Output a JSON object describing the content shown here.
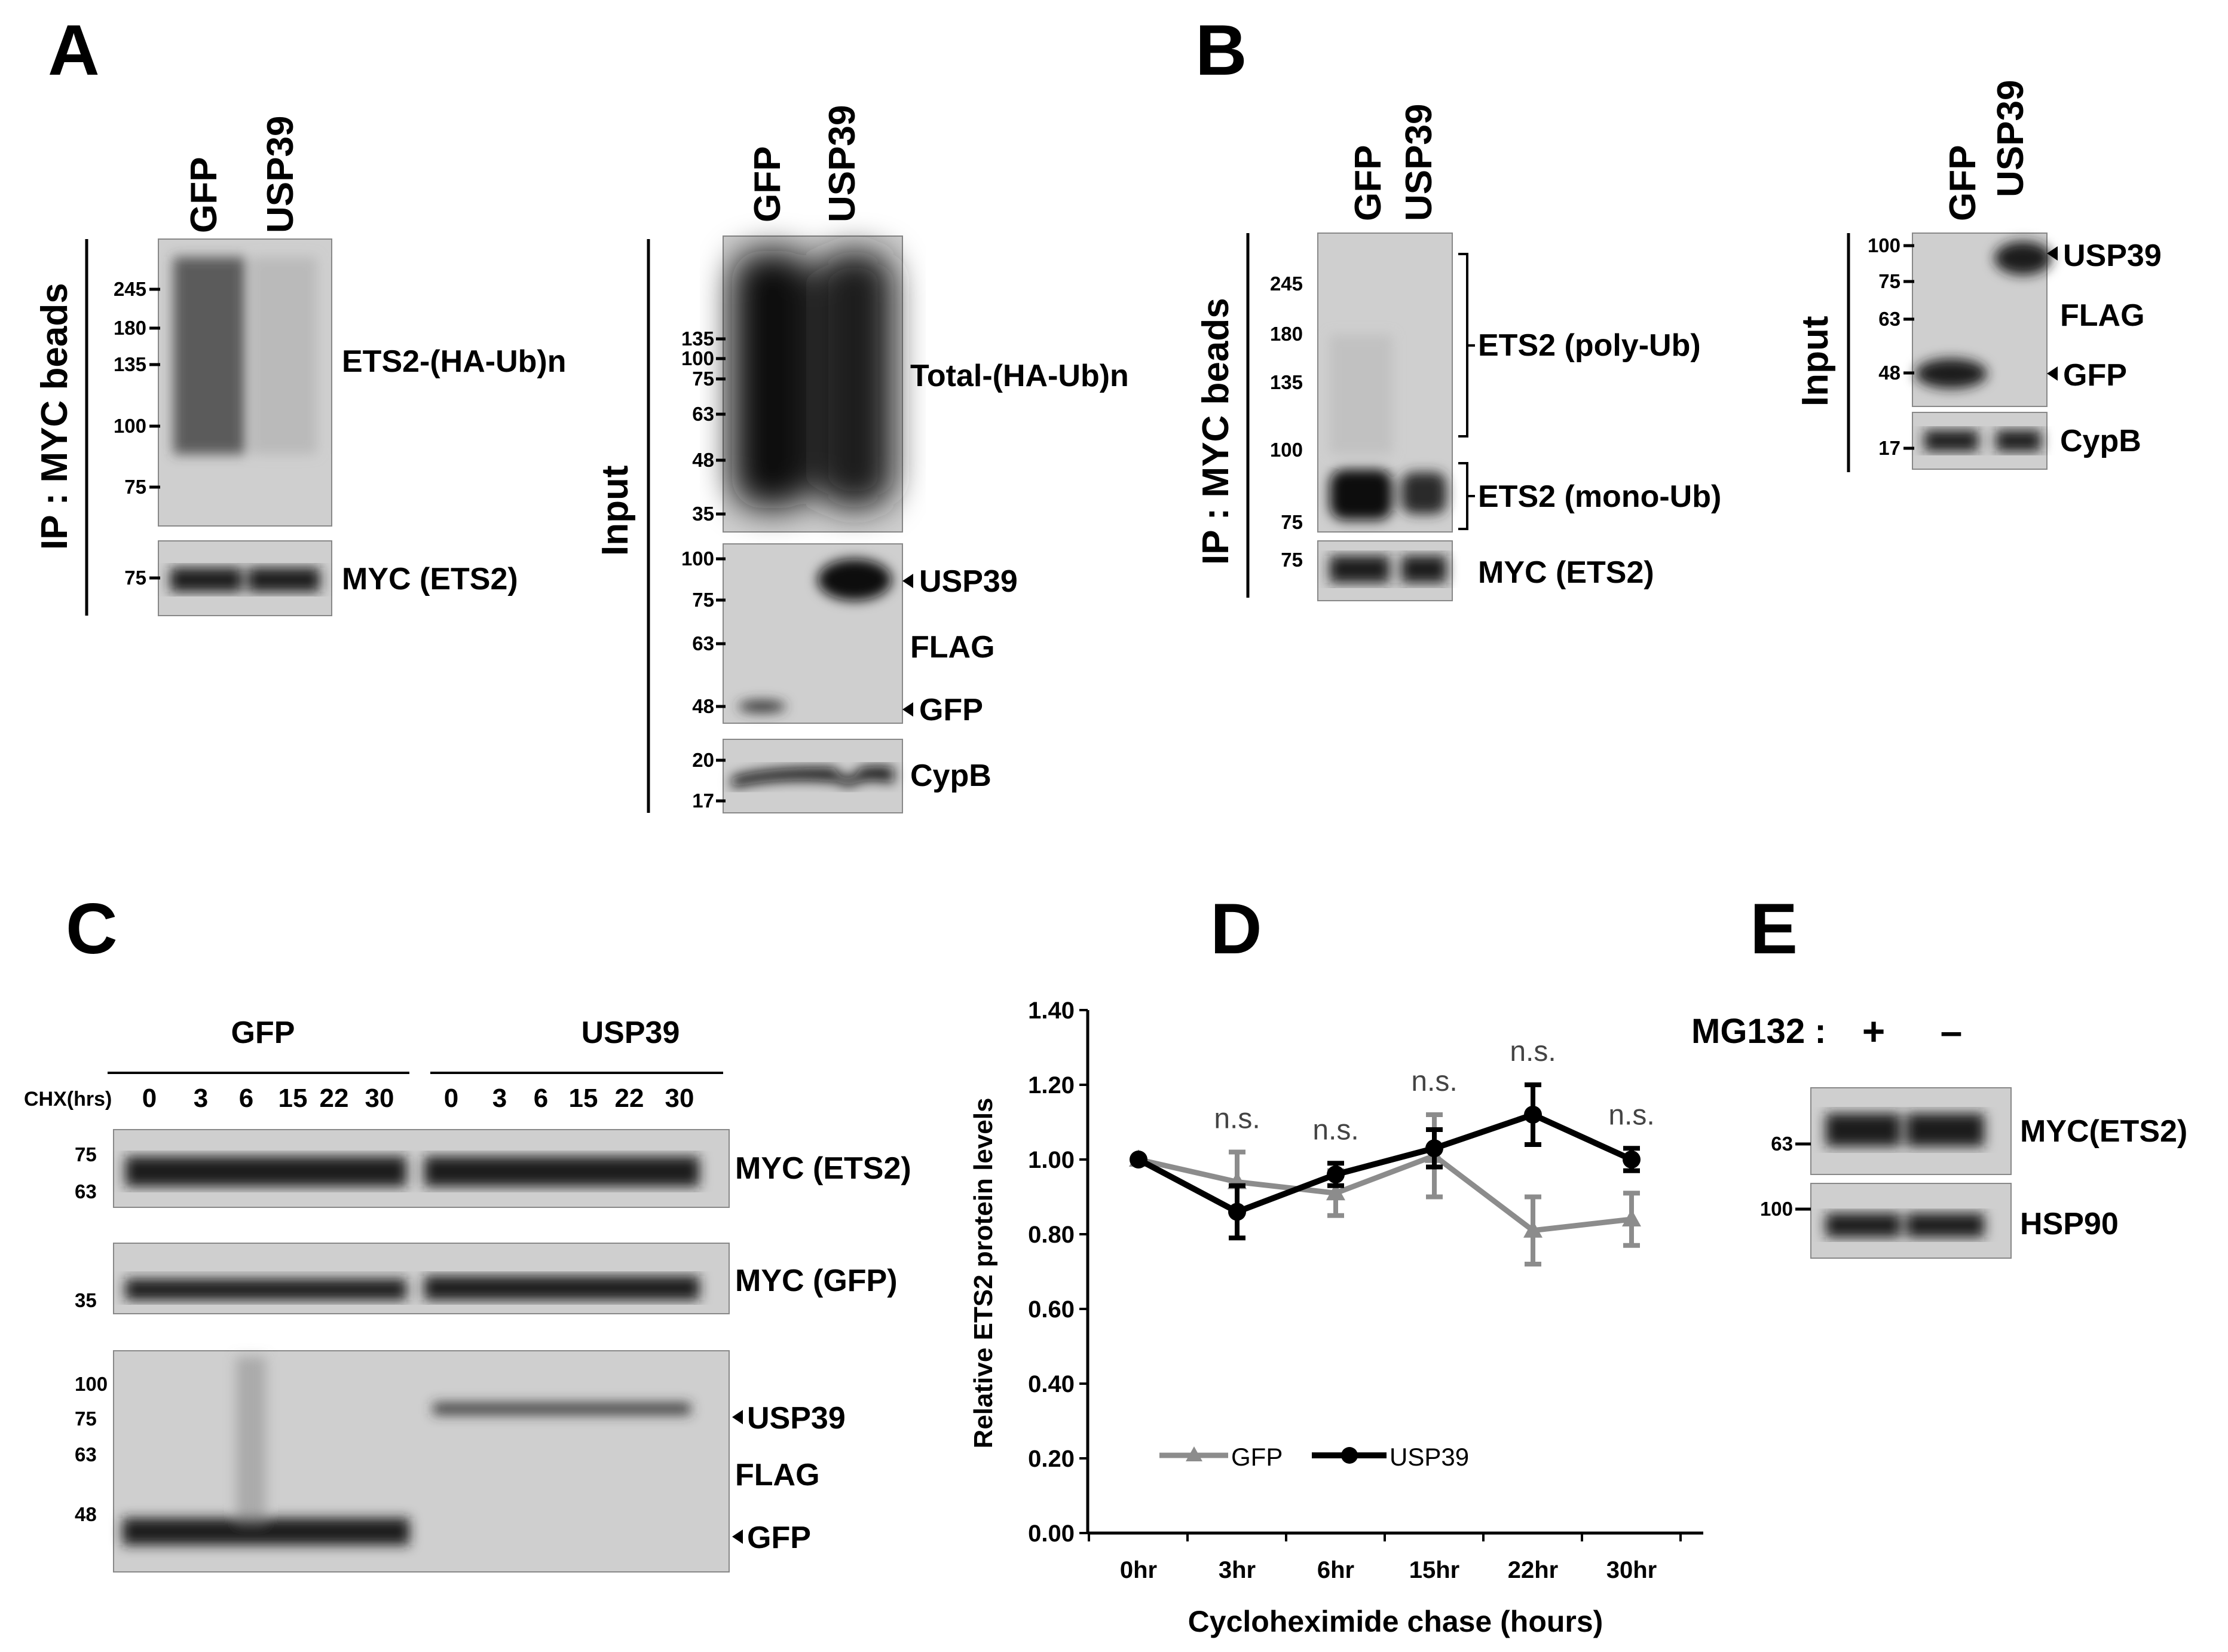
{
  "panelA": {
    "label": "A",
    "ip_label": "IP : MYC beads",
    "input_label": "Input",
    "lanes": [
      "GFP",
      "USP39"
    ],
    "ip_mw": [
      "245",
      "180",
      "135",
      "100",
      "75"
    ],
    "ip_band": "ETS2-(HA-Ub)n",
    "myc_mw": "75",
    "myc_band": "MYC (ETS2)",
    "input_mw": [
      "135",
      "100",
      "75",
      "63",
      "48",
      "35"
    ],
    "input_band": "Total-(HA-Ub)n",
    "flag_mw": [
      "100",
      "75",
      "63",
      "48"
    ],
    "flag_bands": [
      "USP39",
      "FLAG",
      "GFP"
    ],
    "cypb_mw": [
      "20",
      "17"
    ],
    "cypb_band": "CypB"
  },
  "panelB": {
    "label": "B",
    "ip_label": "IP : MYC beads",
    "input_label": "Input",
    "lanes": [
      "GFP",
      "USP39"
    ],
    "ip_mw": [
      "245",
      "180",
      "135",
      "100",
      "75"
    ],
    "poly": "ETS2 (poly-Ub)",
    "mono": "ETS2 (mono-Ub)",
    "myc_mw": "75",
    "myc_band": "MYC (ETS2)",
    "flag_mw": [
      "100",
      "75",
      "63",
      "48"
    ],
    "flag_bands": [
      "USP39",
      "FLAG",
      "GFP"
    ],
    "cypb_mw": "17",
    "cypb_band": "CypB"
  },
  "panelC": {
    "label": "C",
    "groups": [
      "GFP",
      "USP39"
    ],
    "chx_label": "CHX(hrs)",
    "times": [
      "0",
      "3",
      "6",
      "15",
      "22",
      "30"
    ],
    "ets2_mw": [
      "75",
      "63"
    ],
    "ets2_band": "MYC (ETS2)",
    "gfp_mw": "35",
    "gfp_band": "MYC (GFP)",
    "flag_mw": [
      "100",
      "75",
      "63",
      "48"
    ],
    "flag_bands": [
      "USP39",
      "FLAG",
      "GFP"
    ]
  },
  "panelE": {
    "label": "E",
    "treatment": "MG132 :",
    "signs": [
      "+",
      "–"
    ],
    "myc_mw": "63",
    "myc_band": "MYC(ETS2)",
    "hsp_mw": "100",
    "hsp_band": "HSP90"
  },
  "chart_data": {
    "panel": "D",
    "type": "line",
    "categories": [
      "0hr",
      "3hr",
      "6hr",
      "15hr",
      "22hr",
      "30hr"
    ],
    "series": [
      {
        "name": "GFP",
        "values": [
          1.0,
          0.94,
          0.91,
          1.01,
          0.81,
          0.84
        ],
        "errors": [
          0,
          0.08,
          0.06,
          0.11,
          0.09,
          0.07
        ],
        "color": "#8c8c8c",
        "marker": "triangle"
      },
      {
        "name": "USP39",
        "values": [
          1.0,
          0.86,
          0.96,
          1.03,
          1.12,
          1.0
        ],
        "errors": [
          0,
          0.07,
          0.03,
          0.05,
          0.08,
          0.03
        ],
        "color": "#000000",
        "marker": "circle"
      }
    ],
    "annotations": [
      "",
      "n.s.",
      "n.s.",
      "n.s.",
      "n.s.",
      "n.s."
    ],
    "xlabel": "Cycloheximide chase (hours)",
    "ylabel": "Relative  ETS2 protein levels",
    "ylim": [
      0,
      1.4
    ],
    "yticks": [
      "0.00",
      "0.20",
      "0.40",
      "0.60",
      "0.80",
      "1.00",
      "1.20",
      "1.40"
    ],
    "grid": false,
    "legend": "bottom-left"
  }
}
